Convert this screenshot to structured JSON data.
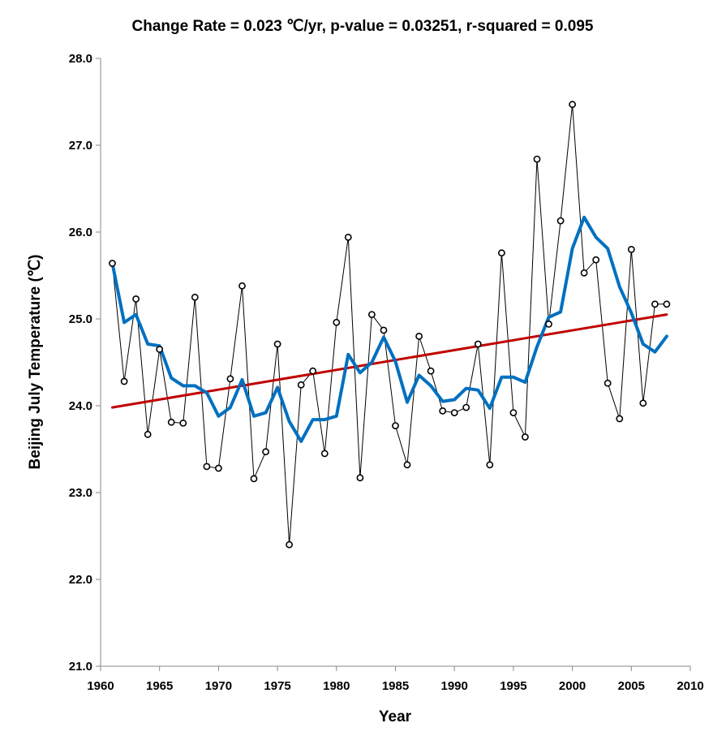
{
  "chart_data": {
    "type": "line",
    "title": "Change Rate =  0.023 ℃/yr,  p-value =  0.03251,  r-squared =  0.095",
    "xlabel": "Year",
    "ylabel": "Beijing July Temperature (℃)",
    "xlim": [
      1960,
      2010
    ],
    "ylim": [
      21.0,
      28.0
    ],
    "x_ticks": [
      "1960",
      "1965",
      "1970",
      "1975",
      "1980",
      "1985",
      "1990",
      "1995",
      "2000",
      "2005",
      "2010"
    ],
    "y_ticks": [
      "21.0",
      "22.0",
      "23.0",
      "24.0",
      "25.0",
      "26.0",
      "27.0",
      "28.0"
    ],
    "grid": false,
    "legend": "none",
    "series": [
      {
        "style": "thin black line with open circle markers",
        "color": "#000000",
        "x": [
          1961,
          1962,
          1963,
          1964,
          1965,
          1966,
          1967,
          1968,
          1969,
          1970,
          1971,
          1972,
          1973,
          1974,
          1975,
          1976,
          1977,
          1978,
          1979,
          1980,
          1981,
          1982,
          1983,
          1984,
          1985,
          1986,
          1987,
          1988,
          1989,
          1990,
          1991,
          1992,
          1993,
          1994,
          1995,
          1996,
          1997,
          1998,
          1999,
          2000,
          2001,
          2002,
          2003,
          2004,
          2005,
          2006,
          2007,
          2008
        ],
        "y": [
          25.64,
          24.28,
          25.23,
          23.67,
          24.65,
          23.81,
          23.8,
          25.25,
          23.3,
          23.28,
          24.31,
          25.38,
          23.16,
          23.47,
          24.71,
          22.4,
          24.24,
          24.4,
          23.45,
          24.96,
          25.94,
          23.17,
          25.05,
          24.87,
          23.77,
          23.32,
          24.8,
          24.4,
          23.94,
          23.92,
          23.98,
          24.71,
          23.32,
          25.76,
          23.92,
          23.64,
          26.84,
          24.94,
          26.13,
          27.47,
          25.53,
          25.68,
          24.26,
          23.85,
          25.8,
          24.03,
          25.17,
          25.17
        ]
      },
      {
        "style": "thick blue smoothed line",
        "color": "#0070C0",
        "x": [
          1961,
          1962,
          1963,
          1964,
          1965,
          1966,
          1967,
          1968,
          1969,
          1970,
          1971,
          1972,
          1973,
          1974,
          1975,
          1976,
          1977,
          1978,
          1979,
          1980,
          1981,
          1982,
          1983,
          1984,
          1985,
          1986,
          1987,
          1988,
          1989,
          1990,
          1991,
          1992,
          1993,
          1994,
          1995,
          1996,
          1997,
          1998,
          1999,
          2000,
          2001,
          2002,
          2003,
          2004,
          2005,
          2006,
          2007,
          2008
        ],
        "y": [
          25.64,
          24.96,
          25.05,
          24.71,
          24.69,
          24.32,
          24.23,
          24.23,
          24.15,
          23.88,
          23.98,
          24.3,
          23.88,
          23.92,
          24.21,
          23.82,
          23.59,
          23.84,
          23.84,
          23.88,
          24.59,
          24.38,
          24.5,
          24.79,
          24.51,
          24.04,
          24.35,
          24.23,
          24.05,
          24.07,
          24.2,
          24.18,
          23.97,
          24.33,
          24.33,
          24.27,
          24.68,
          25.02,
          25.08,
          25.81,
          26.17,
          25.94,
          25.81,
          25.37,
          25.07,
          24.71,
          24.62,
          24.8
        ]
      },
      {
        "style": "red linear trend line",
        "color": "#C00000",
        "x": [
          1961,
          2008
        ],
        "y": [
          23.98,
          25.05
        ]
      }
    ]
  }
}
